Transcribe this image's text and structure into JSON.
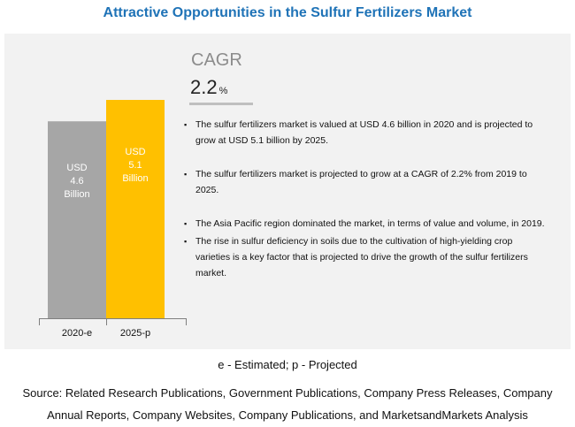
{
  "title": "Attractive Opportunities in the Sulfur Fertilizers Market",
  "cagr": {
    "label": "CAGR",
    "value": "2.2",
    "unit": "%"
  },
  "bullets": [
    "The sulfur fertilizers market is valued at USD 4.6 billion in 2020 and is projected to grow at USD 5.1 billion by 2025.",
    "The sulfur fertilizers market is projected to grow at a CAGR of 2.2% from 2019 to 2025.",
    "The Asia Pacific region dominated the market, in terms of value and volume, in 2019.",
    "The rise in sulfur deficiency in soils due to the cultivation of high-yielding crop varieties is a key factor that is projected to drive the growth of the sulfur fertilizers market."
  ],
  "footnote": "e - Estimated; p - Projected",
  "source": "Source: Related Research Publications, Government Publications, Company Press Releases, Company Annual Reports, Company Websites, Company Publications, and MarketsandMarkets Analysis",
  "chart_data": {
    "type": "bar",
    "categories": [
      "2020-e",
      "2025-p"
    ],
    "values": [
      4.6,
      5.1
    ],
    "value_labels": [
      [
        "USD",
        "4.6",
        "Billion"
      ],
      [
        "USD",
        "5.1",
        "Billion"
      ]
    ],
    "colors": [
      "#a6a6a6",
      "#ffc000"
    ],
    "ylim": [
      0,
      5.1
    ],
    "grid": false,
    "legend": "none"
  }
}
